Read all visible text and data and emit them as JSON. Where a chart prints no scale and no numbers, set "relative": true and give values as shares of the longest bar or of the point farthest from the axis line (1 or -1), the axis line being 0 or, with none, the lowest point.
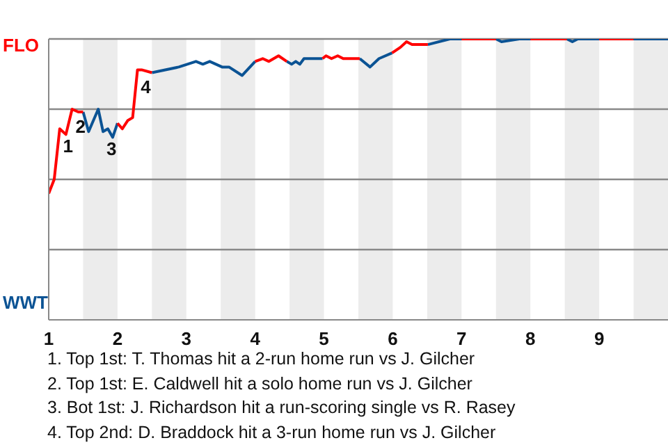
{
  "chart_data": {
    "type": "line",
    "relative": true,
    "x": [
      1,
      1.08,
      1.16,
      1.25,
      1.34,
      1.43,
      1.5,
      1.58,
      1.72,
      1.79,
      1.86,
      1.93,
      2,
      2.07,
      2.15,
      2.22,
      2.29,
      2.35,
      2.5,
      2.89,
      3.14,
      3.24,
      3.34,
      3.52,
      3.62,
      3.81,
      4,
      4.11,
      4.2,
      4.34,
      4.46,
      4.53,
      4.59,
      4.65,
      4.71,
      4.98,
      5.03,
      5.11,
      5.2,
      5.28,
      5.52,
      5.67,
      5.8,
      5.99,
      6.11,
      6.2,
      6.28,
      6.51,
      6.83,
      7,
      7.5,
      7.58,
      7.84,
      8,
      8.53,
      8.61,
      8.69,
      9,
      9.5,
      10
    ],
    "series": [
      {
        "name": "FLO",
        "color": "#ff0000",
        "values": [
          0.45,
          0.5,
          0.68,
          0.66,
          0.75,
          0.74,
          0.74,
          null,
          null,
          null,
          null,
          null,
          0.7,
          0.68,
          0.71,
          0.72,
          0.89,
          0.89,
          0.88,
          null,
          null,
          null,
          null,
          null,
          null,
          null,
          0.92,
          0.93,
          0.92,
          0.94,
          0.92,
          null,
          null,
          null,
          null,
          0.93,
          0.94,
          0.93,
          0.94,
          0.93,
          0.93,
          null,
          null,
          0.95,
          0.97,
          0.99,
          0.98,
          0.98,
          null,
          1,
          1,
          null,
          null,
          1,
          1,
          null,
          null,
          1,
          1,
          null
        ]
      },
      {
        "name": "WWT",
        "color": "#0b5394",
        "values": [
          null,
          null,
          null,
          null,
          null,
          null,
          0.74,
          0.67,
          0.75,
          0.67,
          0.68,
          0.65,
          0.7,
          null,
          null,
          null,
          null,
          null,
          0.88,
          0.9,
          0.92,
          0.91,
          0.92,
          0.9,
          0.9,
          0.87,
          0.92,
          null,
          null,
          null,
          0.92,
          0.91,
          0.92,
          0.91,
          0.93,
          0.93,
          null,
          null,
          null,
          null,
          0.93,
          0.9,
          0.93,
          0.95,
          null,
          null,
          null,
          0.98,
          1,
          1,
          1,
          0.99,
          1,
          1,
          1,
          0.99,
          1,
          1,
          1,
          1
        ]
      }
    ],
    "xlim": [
      1,
      10
    ],
    "xticks": [
      1,
      2,
      3,
      4,
      5,
      6,
      7,
      8,
      9
    ],
    "grid": "y",
    "marker": "none",
    "line_style": "solid",
    "bands": [
      {
        "axis": "x",
        "from": 1.5,
        "to": 2,
        "color": "#ececec"
      },
      {
        "axis": "x",
        "from": 2.5,
        "to": 3,
        "color": "#ececec"
      },
      {
        "axis": "x",
        "from": 3.5,
        "to": 4,
        "color": "#ececec"
      },
      {
        "axis": "x",
        "from": 4.5,
        "to": 5,
        "color": "#ececec"
      },
      {
        "axis": "x",
        "from": 5.5,
        "to": 6,
        "color": "#ececec"
      },
      {
        "axis": "x",
        "from": 6.5,
        "to": 7,
        "color": "#ececec"
      },
      {
        "axis": "x",
        "from": 7.5,
        "to": 8,
        "color": "#ececec"
      },
      {
        "axis": "x",
        "from": 8.5,
        "to": 9,
        "color": "#ececec"
      },
      {
        "axis": "x",
        "from": 9.5,
        "to": 10,
        "color": "#ececec"
      }
    ],
    "annotations": [
      {
        "text": "1",
        "x": 1.16,
        "y": 0.68
      },
      {
        "text": "2",
        "x": 1.34,
        "y": 0.75
      },
      {
        "text": "3",
        "x": 1.79,
        "y": 0.67
      },
      {
        "text": "4",
        "x": 2.29,
        "y": 0.89
      },
      "1. Top 1st: T. Thomas hit a 2-run home run vs J. Gilcher",
      "2. Top 1st: E. Caldwell hit a solo home run vs J. Gilcher",
      "3. Bot 1st: J. Richardson hit a run-scoring single vs R. Rasey",
      "4. Top 2nd: D. Braddock hit a 3-run home run vs J. Gilcher"
    ]
  }
}
